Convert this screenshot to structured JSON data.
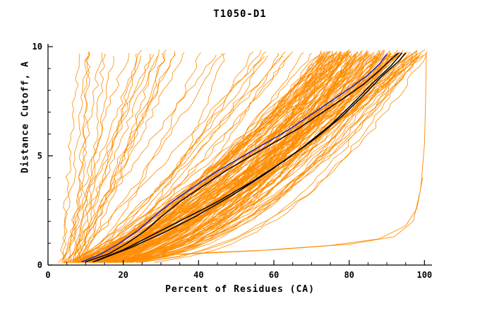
{
  "chart_data": {
    "type": "line",
    "title": "T1050-D1",
    "xlabel": "Percent of Residues (CA)",
    "ylabel": "Distance Cutoff, A",
    "xlim": [
      0,
      102
    ],
    "ylim": [
      0,
      10
    ],
    "x_major_ticks": [
      0,
      20,
      40,
      60,
      80,
      100
    ],
    "x_minor_step": 5,
    "y_major_ticks": [
      0,
      5,
      10
    ],
    "y_minor_step": 1,
    "grid": false,
    "legend": "none",
    "colors": {
      "ensemble": "#ff8c00",
      "highlight": "#000000",
      "special": "#2020c0",
      "axis": "#000000",
      "background": "#ffffff"
    },
    "ensemble": {
      "description": "dense bundle of orange prediction curves (percent of residues under distance cutoff)",
      "seed": 42,
      "count_main": 140,
      "count_steep": 22,
      "count_mid": 14,
      "y_max": 9.7,
      "x_start_range": [
        3,
        12
      ],
      "x_top_main_range": [
        72,
        101
      ],
      "x_top_steep_range": [
        8,
        45
      ],
      "x_top_mid_range": [
        45,
        75
      ]
    },
    "outlier_series": [
      {
        "name": "orange-low-right-edge",
        "points": [
          [
            4,
            0.1
          ],
          [
            20,
            0.35
          ],
          [
            40,
            0.55
          ],
          [
            60,
            0.7
          ],
          [
            80,
            0.95
          ],
          [
            92,
            1.3
          ],
          [
            97,
            2.0
          ],
          [
            99,
            3.5
          ],
          [
            100,
            5.5
          ],
          [
            100.3,
            7.5
          ],
          [
            100.5,
            9.7
          ]
        ]
      },
      {
        "name": "orange-low-2",
        "points": [
          [
            30,
            0.45
          ],
          [
            55,
            0.65
          ],
          [
            75,
            0.9
          ],
          [
            88,
            1.2
          ],
          [
            95,
            1.8
          ],
          [
            98,
            2.6
          ],
          [
            99.5,
            4.0
          ]
        ]
      }
    ],
    "highlight_series": [
      {
        "name": "black-model-1",
        "color": "#000000",
        "points": [
          [
            10,
            0.15
          ],
          [
            16,
            0.5
          ],
          [
            21,
            1.0
          ],
          [
            26,
            1.6
          ],
          [
            30,
            2.2
          ],
          [
            35,
            2.9
          ],
          [
            41,
            3.6
          ],
          [
            48,
            4.4
          ],
          [
            55,
            5.1
          ],
          [
            61,
            5.7
          ],
          [
            67,
            6.3
          ],
          [
            73,
            7.0
          ],
          [
            79,
            7.7
          ],
          [
            84,
            8.3
          ],
          [
            88,
            8.9
          ],
          [
            91,
            9.4
          ],
          [
            93,
            9.7
          ]
        ]
      },
      {
        "name": "black-model-2",
        "color": "#000000",
        "points": [
          [
            12,
            0.15
          ],
          [
            20,
            0.7
          ],
          [
            28,
            1.4
          ],
          [
            36,
            2.1
          ],
          [
            45,
            2.9
          ],
          [
            54,
            3.8
          ],
          [
            63,
            4.8
          ],
          [
            71,
            5.8
          ],
          [
            78,
            6.8
          ],
          [
            84,
            7.8
          ],
          [
            89,
            8.7
          ],
          [
            93,
            9.3
          ],
          [
            95,
            9.7
          ]
        ]
      },
      {
        "name": "black-model-3",
        "color": "#000000",
        "points": [
          [
            13,
            0.2
          ],
          [
            22,
            0.8
          ],
          [
            31,
            1.5
          ],
          [
            40,
            2.3
          ],
          [
            49,
            3.2
          ],
          [
            58,
            4.2
          ],
          [
            67,
            5.3
          ],
          [
            75,
            6.4
          ],
          [
            81,
            7.4
          ],
          [
            86,
            8.3
          ],
          [
            91,
            9.1
          ],
          [
            94,
            9.7
          ]
        ]
      },
      {
        "name": "blue-model",
        "color": "#2020c0",
        "points": [
          [
            9,
            0.15
          ],
          [
            14,
            0.5
          ],
          [
            19,
            1.0
          ],
          [
            24,
            1.6
          ],
          [
            28,
            2.2
          ],
          [
            33,
            2.9
          ],
          [
            38,
            3.5
          ],
          [
            45,
            4.3
          ],
          [
            52,
            5.0
          ],
          [
            58,
            5.6
          ],
          [
            64,
            6.2
          ],
          [
            70,
            6.9
          ],
          [
            76,
            7.6
          ],
          [
            81,
            8.2
          ],
          [
            85,
            8.7
          ],
          [
            88,
            9.2
          ],
          [
            90,
            9.65
          ]
        ]
      }
    ]
  }
}
